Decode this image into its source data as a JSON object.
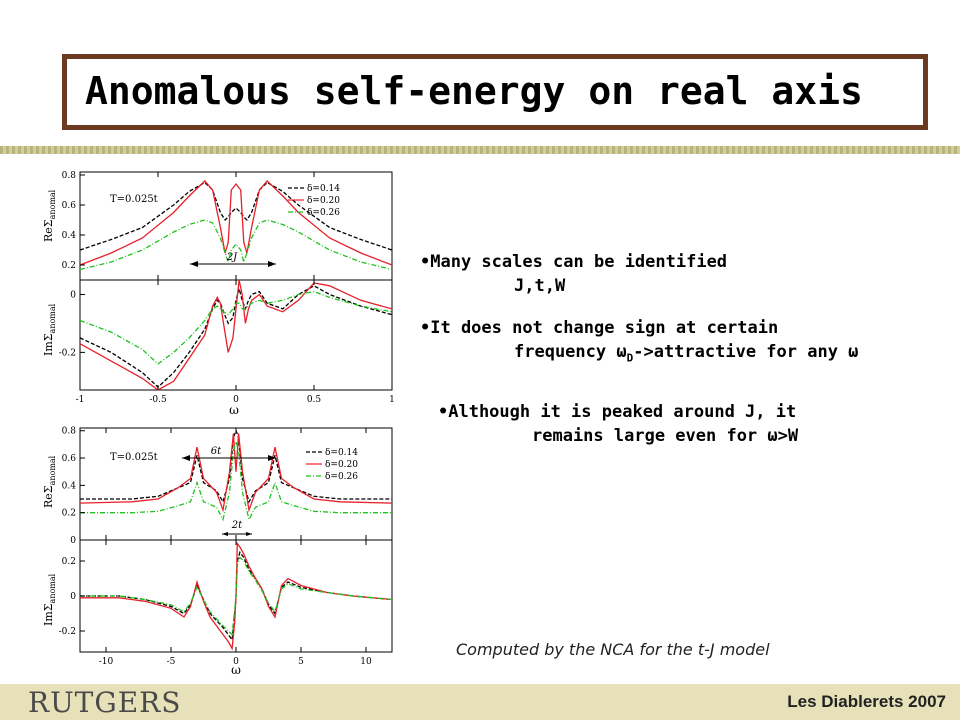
{
  "title": "Anomalous self-energy on real axis",
  "bullets": [
    {
      "line1": "•Many scales can be identified",
      "line2": "J,t,W"
    },
    {
      "line1": "•It does not change sign at certain",
      "line2a": "frequency ",
      "line2omega": "ω",
      "line2sub": "D",
      "line2b": "->attractive for any ",
      "line2omega2": "ω"
    },
    {
      "line1": "•Although it is peaked around J, it",
      "line2a": "remains large even for ",
      "line2omega": "ω",
      "line2b": ">W"
    }
  ],
  "caption": "Computed by the NCA for the t-J model",
  "footer": {
    "logo": "RUTGERS",
    "conference": "Les Diablerets 2007"
  },
  "colors": {
    "border": "#6b3a1f",
    "s014": "#000000",
    "s020": "#e8202a",
    "s026": "#1fc21f",
    "footer": "#e6e1b8"
  },
  "chart_data": [
    {
      "type": "line",
      "panel": "top",
      "xlim": [
        -1,
        1
      ],
      "xticks": [
        "-1",
        "-0.5",
        "0",
        "0.5",
        "1"
      ],
      "xlabel": "ω",
      "annotations": {
        "temperature": "T=0.025t",
        "scale": "2J"
      },
      "legend": [
        "δ=0.14",
        "δ=0.20",
        "δ=0.26"
      ],
      "subplots": [
        {
          "ylabel_main": "ReΣ",
          "ylabel_sub": "anomal",
          "ylim": [
            0.1,
            0.82
          ],
          "yticks": [
            "0.2",
            "0.4",
            "0.6",
            "0.8"
          ],
          "x": [
            -1,
            -0.8,
            -0.6,
            -0.4,
            -0.3,
            -0.2,
            -0.15,
            -0.1,
            -0.07,
            -0.05,
            -0.03,
            0,
            0.03,
            0.05,
            0.07,
            0.1,
            0.15,
            0.2,
            0.3,
            0.4,
            0.6,
            0.8,
            1
          ],
          "series": [
            {
              "name": "δ=0.14",
              "values": [
                0.3,
                0.37,
                0.45,
                0.6,
                0.69,
                0.75,
                0.7,
                0.55,
                0.5,
                0.52,
                0.55,
                0.58,
                0.55,
                0.52,
                0.5,
                0.55,
                0.7,
                0.75,
                0.69,
                0.6,
                0.45,
                0.37,
                0.3
              ]
            },
            {
              "name": "δ=0.20",
              "values": [
                0.2,
                0.28,
                0.38,
                0.55,
                0.66,
                0.76,
                0.7,
                0.45,
                0.28,
                0.35,
                0.7,
                0.74,
                0.7,
                0.35,
                0.28,
                0.45,
                0.7,
                0.76,
                0.66,
                0.55,
                0.38,
                0.28,
                0.2
              ]
            },
            {
              "name": "δ=0.26",
              "values": [
                0.17,
                0.22,
                0.3,
                0.42,
                0.47,
                0.5,
                0.48,
                0.38,
                0.28,
                0.22,
                0.3,
                0.34,
                0.3,
                0.22,
                0.28,
                0.38,
                0.48,
                0.5,
                0.47,
                0.42,
                0.3,
                0.22,
                0.17
              ]
            }
          ]
        },
        {
          "ylabel_main": "ImΣ",
          "ylabel_sub": "anomal",
          "ylim": [
            -0.33,
            0.05
          ],
          "yticks": [
            "-0.2",
            "0"
          ],
          "x": [
            -1,
            -0.8,
            -0.6,
            -0.5,
            -0.4,
            -0.3,
            -0.2,
            -0.15,
            -0.12,
            -0.1,
            -0.08,
            -0.05,
            -0.02,
            0,
            0.02,
            0.04,
            0.06,
            0.08,
            0.1,
            0.15,
            0.2,
            0.3,
            0.4,
            0.5,
            0.6,
            0.8,
            1
          ],
          "series": [
            {
              "name": "δ=0.14",
              "values": [
                -0.15,
                -0.2,
                -0.27,
                -0.32,
                -0.27,
                -0.2,
                -0.12,
                -0.05,
                -0.02,
                -0.03,
                -0.06,
                -0.1,
                -0.08,
                -0.02,
                0.02,
                -0.02,
                -0.05,
                -0.02,
                0.0,
                0.01,
                -0.03,
                -0.05,
                0.0,
                0.03,
                0.0,
                -0.04,
                -0.07
              ]
            },
            {
              "name": "δ=0.20",
              "values": [
                -0.17,
                -0.23,
                -0.29,
                -0.33,
                -0.3,
                -0.22,
                -0.14,
                -0.04,
                -0.01,
                -0.03,
                -0.1,
                -0.2,
                -0.15,
                -0.05,
                0.05,
                0.0,
                -0.1,
                -0.05,
                -0.02,
                0.0,
                -0.04,
                -0.06,
                -0.02,
                0.04,
                0.03,
                -0.02,
                -0.05
              ]
            },
            {
              "name": "δ=0.26",
              "values": [
                -0.09,
                -0.13,
                -0.19,
                -0.24,
                -0.2,
                -0.15,
                -0.09,
                -0.05,
                -0.04,
                -0.05,
                -0.06,
                -0.07,
                -0.05,
                -0.03,
                -0.03,
                -0.05,
                -0.05,
                -0.04,
                -0.03,
                -0.02,
                -0.03,
                -0.02,
                0.0,
                0.01,
                -0.01,
                -0.04,
                -0.06
              ]
            }
          ]
        }
      ]
    },
    {
      "type": "line",
      "panel": "bottom",
      "xlim": [
        -12,
        12
      ],
      "xticks": [
        "-10",
        "-5",
        "0",
        "5",
        "10"
      ],
      "xlabel": "ω",
      "annotations": {
        "temperature": "T=0.025t",
        "scale_outer": "6t",
        "scale_inner": "2t"
      },
      "legend": [
        "δ=0.14",
        "δ=0.20",
        "δ=0.26"
      ],
      "subplots": [
        {
          "ylabel_main": "ReΣ",
          "ylabel_sub": "anomal",
          "ylim": [
            0.0,
            0.82
          ],
          "yticks": [
            "0",
            "0.2",
            "0.4",
            "0.6",
            "0.8"
          ],
          "x": [
            -12,
            -8,
            -6,
            -4.5,
            -3.5,
            -3,
            -2.5,
            -1.5,
            -1,
            -0.5,
            -0.2,
            0,
            0.2,
            0.5,
            1,
            1.5,
            2.5,
            3,
            3.5,
            4.5,
            6,
            8,
            12
          ],
          "series": [
            {
              "name": "δ=0.14",
              "values": [
                0.3,
                0.3,
                0.32,
                0.38,
                0.42,
                0.62,
                0.42,
                0.36,
                0.28,
                0.45,
                0.75,
                0.8,
                0.75,
                0.45,
                0.28,
                0.36,
                0.42,
                0.62,
                0.42,
                0.38,
                0.32,
                0.3,
                0.3
              ]
            },
            {
              "name": "δ=0.20",
              "values": [
                0.27,
                0.28,
                0.3,
                0.38,
                0.45,
                0.68,
                0.45,
                0.35,
                0.22,
                0.5,
                0.78,
                0.5,
                0.78,
                0.5,
                0.22,
                0.35,
                0.45,
                0.68,
                0.45,
                0.38,
                0.3,
                0.28,
                0.27
              ]
            },
            {
              "name": "δ=0.26",
              "values": [
                0.2,
                0.2,
                0.21,
                0.25,
                0.28,
                0.42,
                0.28,
                0.24,
                0.15,
                0.35,
                0.65,
                0.72,
                0.65,
                0.35,
                0.15,
                0.24,
                0.28,
                0.42,
                0.28,
                0.25,
                0.21,
                0.2,
                0.2
              ]
            }
          ]
        },
        {
          "ylabel_main": "ImΣ",
          "ylabel_sub": "anomal",
          "ylim": [
            -0.32,
            0.32
          ],
          "yticks": [
            "-0.2",
            "0",
            "0.2"
          ],
          "x": [
            -12,
            -9,
            -7,
            -5,
            -4,
            -3.5,
            -3,
            -2.5,
            -2,
            -1.5,
            -1,
            -0.6,
            -0.3,
            -0.1,
            0,
            0.1,
            0.3,
            0.6,
            1,
            1.5,
            2,
            2.5,
            3,
            3.5,
            4,
            5,
            7,
            9,
            12
          ],
          "series": [
            {
              "name": "δ=0.14",
              "values": [
                0.0,
                0.0,
                -0.02,
                -0.06,
                -0.1,
                -0.05,
                0.06,
                -0.02,
                -0.1,
                -0.14,
                -0.18,
                -0.22,
                -0.25,
                -0.1,
                0.0,
                0.2,
                0.25,
                0.22,
                0.15,
                0.1,
                0.04,
                -0.05,
                -0.1,
                0.05,
                0.08,
                0.05,
                0.02,
                0.0,
                -0.02
              ]
            },
            {
              "name": "δ=0.20",
              "values": [
                -0.01,
                -0.01,
                -0.03,
                -0.07,
                -0.12,
                -0.06,
                0.08,
                -0.03,
                -0.12,
                -0.17,
                -0.22,
                -0.26,
                -0.3,
                -0.15,
                0.0,
                0.3,
                0.28,
                0.24,
                0.17,
                0.1,
                0.04,
                -0.06,
                -0.12,
                0.06,
                0.1,
                0.06,
                0.02,
                0.0,
                -0.02
              ]
            },
            {
              "name": "δ=0.26",
              "values": [
                0.0,
                0.0,
                -0.02,
                -0.05,
                -0.09,
                -0.04,
                0.05,
                -0.02,
                -0.09,
                -0.13,
                -0.17,
                -0.2,
                -0.22,
                -0.08,
                0.0,
                0.18,
                0.22,
                0.2,
                0.14,
                0.09,
                0.03,
                -0.04,
                -0.09,
                0.04,
                0.07,
                0.04,
                0.02,
                0.0,
                -0.02
              ]
            }
          ]
        }
      ]
    }
  ]
}
